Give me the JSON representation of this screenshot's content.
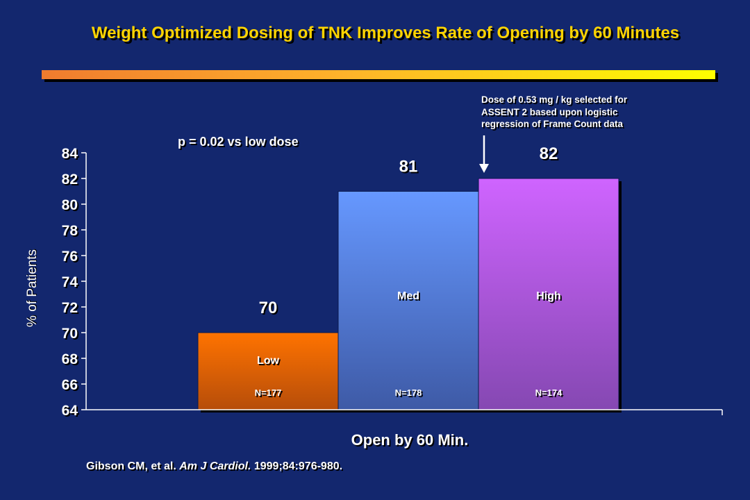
{
  "slide": {
    "title": "Weight Optimized Dosing of TNK Improves Rate of Opening by 60 Minutes",
    "p_value_note": "p = 0.02 vs low dose",
    "annotation_lines": [
      "Dose of 0.53 mg / kg selected for",
      "ASSENT 2 based upon logistic",
      "regression of Frame Count data"
    ],
    "citation": {
      "authors": "Gibson CM, et al.",
      "journal": "Am J Cardiol.",
      "details": "1999;84:976-980."
    },
    "colors": {
      "background": "#13276e",
      "title": "#ffd400",
      "rule_start": "#f07b2e",
      "rule_end": "#ffff00"
    }
  },
  "chart_data": {
    "type": "bar",
    "categories": [
      "Low",
      "Med",
      "High"
    ],
    "values": [
      70,
      81,
      82
    ],
    "sample_sizes": [
      "N=177",
      "N=178",
      "N=174"
    ],
    "xlabel": "Open by 60 Min.",
    "ylabel": "% of Patients",
    "ylim": [
      64,
      84
    ],
    "yticks": [
      64,
      66,
      68,
      70,
      72,
      74,
      76,
      78,
      80,
      82,
      84
    ],
    "grid": false,
    "colors": [
      [
        "#ff7300",
        "#b64d0a"
      ],
      [
        "#6698ff",
        "#3e5aa6"
      ],
      [
        "#cf64ff",
        "#8548b2"
      ]
    ]
  }
}
